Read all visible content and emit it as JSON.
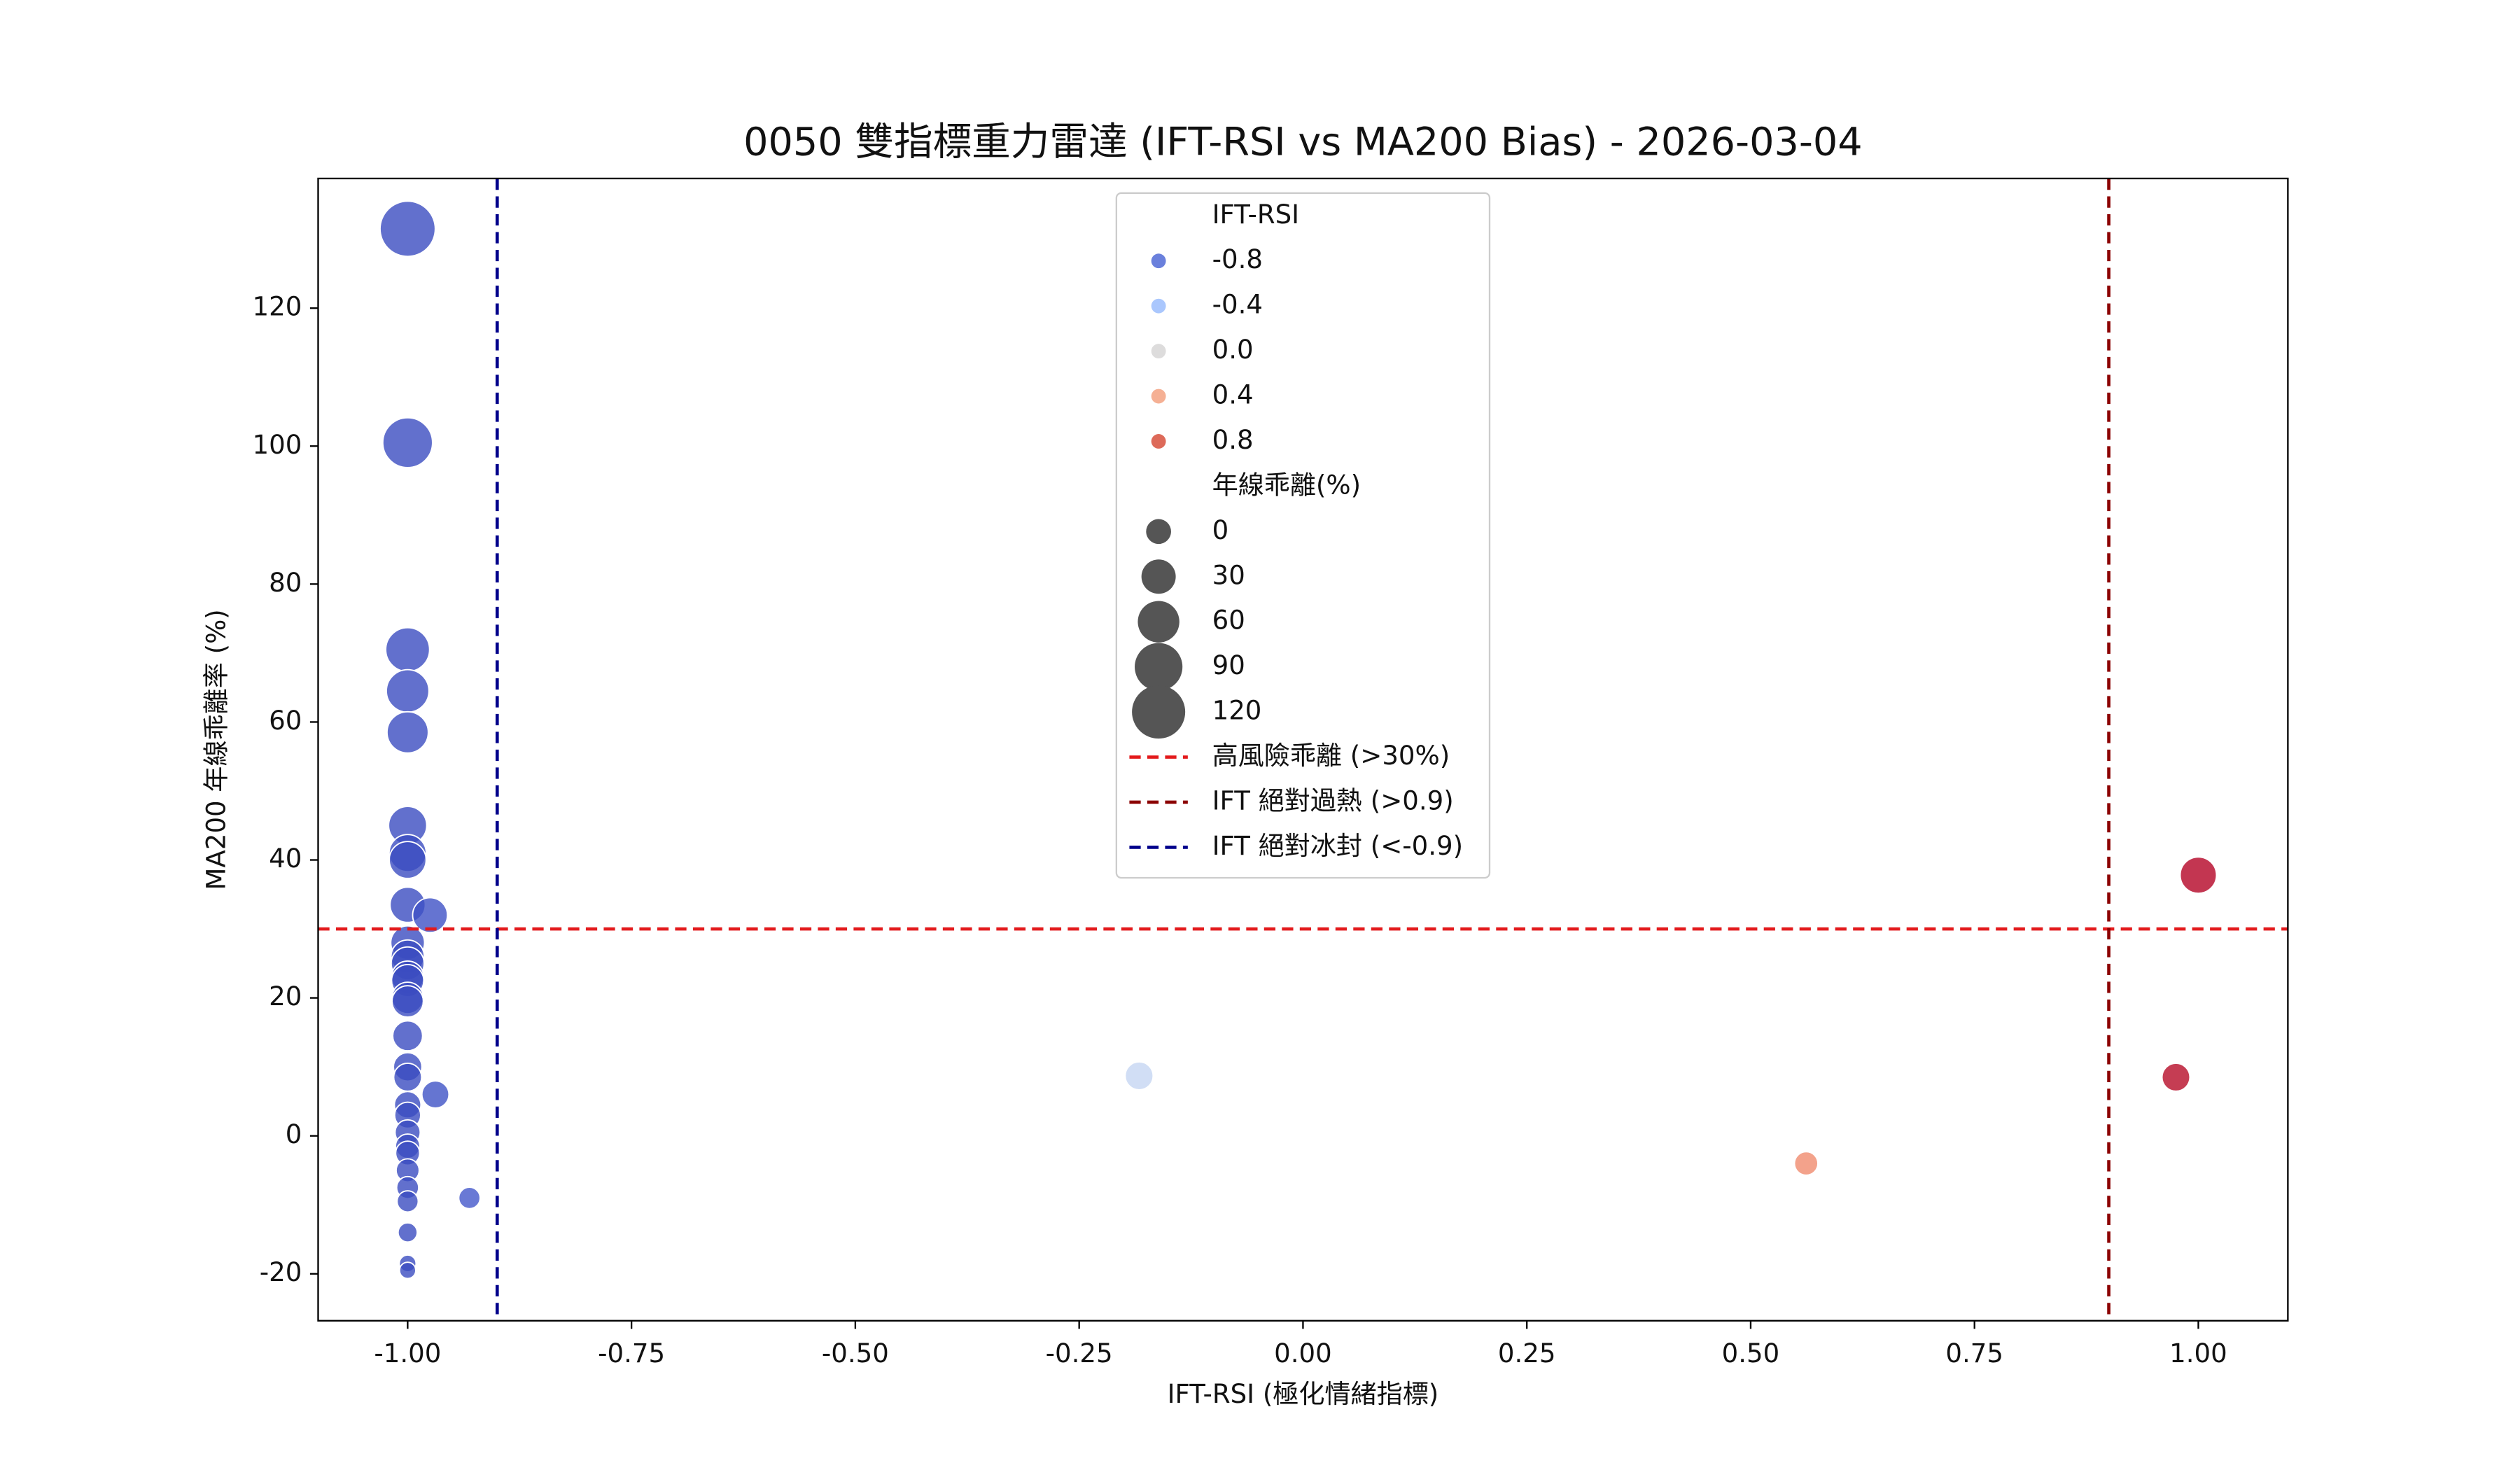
{
  "chart_data": {
    "type": "scatter",
    "title": "0050 雙指標重力雷達 (IFT-RSI vs MA200 Bias) - 2026-03-04",
    "x_label": "IFT-RSI (極化情緒指標)",
    "y_label": "MA200 年線乖離率 (%)",
    "x": [
      -1,
      -1,
      -1,
      -1,
      -1,
      -1,
      -1,
      -1,
      -1,
      -0.975,
      -1,
      -1,
      -1,
      -1,
      -1,
      -1,
      -1,
      -1,
      -1,
      -1,
      -0.969,
      -1,
      -1,
      -1,
      -1,
      -1,
      -1,
      -1,
      -1,
      -0.931,
      -1,
      -1,
      -1,
      -0.183,
      0.562,
      0.975,
      1.0
    ],
    "values": [
      131.5,
      100.5,
      70.5,
      64.5,
      58.5,
      45,
      41,
      40,
      33.5,
      32,
      28,
      26,
      25,
      23,
      22.5,
      20,
      19.5,
      14.5,
      10,
      8.5,
      6,
      4.5,
      3,
      0.5,
      -1.5,
      -2.5,
      -5,
      -7.5,
      -9.5,
      -9,
      -14,
      -18.5,
      -19.5,
      8.7,
      -4,
      8.5,
      37.8
    ],
    "colors": [
      "#3b4cc0",
      "#3b4cc0",
      "#3b4cc0",
      "#3b4cc0",
      "#3b4cc0",
      "#3b4cc0",
      "#3b4cc0",
      "#3b4cc0",
      "#3b4cc0",
      "#3e51c5",
      "#3b4cc0",
      "#3b4cc0",
      "#3b4cc0",
      "#3b4cc0",
      "#3b4cc0",
      "#3b4cc0",
      "#3b4cc0",
      "#3b4cc0",
      "#3b4cc0",
      "#3b4cc0",
      "#3f53c6",
      "#3b4cc0",
      "#3b4cc0",
      "#3b4cc0",
      "#3b4cc0",
      "#3b4cc0",
      "#3b4cc0",
      "#3b4cc0",
      "#3b4cc0",
      "#4358cb",
      "#3b4cc0",
      "#3b4cc0",
      "#3b4cc0",
      "#c5d6f2",
      "#f08b6e",
      "#b70d28",
      "#b40426"
    ],
    "xlim": [
      -1.1,
      1.1
    ],
    "ylim": [
      -26.8,
      138.8
    ],
    "xticks": [
      {
        "value": -1,
        "label": "-1.00"
      },
      {
        "value": -0.75,
        "label": "-0.75"
      },
      {
        "value": -0.5,
        "label": "-0.50"
      },
      {
        "value": -0.25,
        "label": "-0.25"
      },
      {
        "value": 0,
        "label": "0.00"
      },
      {
        "value": 0.25,
        "label": "0.25"
      },
      {
        "value": 0.5,
        "label": "0.50"
      },
      {
        "value": 0.75,
        "label": "0.75"
      },
      {
        "value": 1,
        "label": "1.00"
      }
    ],
    "yticks": [
      -20,
      0,
      20,
      40,
      60,
      80,
      100,
      120
    ],
    "legend": {
      "position": "upper center",
      "hue_title": "IFT-RSI",
      "hue_entries": [
        -0.8,
        -0.4,
        {
          "value": 0,
          "label": "0.0"
        },
        0.4,
        0.8
      ],
      "hue_colors": [
        "#6a80dc",
        "#aac7fd",
        "#dddcdc",
        "#f5b094",
        "#dd6a59"
      ],
      "size_title": "年線乖離(%)",
      "size_entries": [
        0,
        30,
        60,
        90,
        120
      ],
      "size_color": "#555555"
    },
    "reference_lines": [
      {
        "name": "高風險乖離 (>30%)",
        "axis": "y",
        "value": 30,
        "color": "#e31a1c"
      },
      {
        "name": "IFT 絕對過熱 (>0.9)",
        "axis": "x",
        "value": 0.9,
        "color": "#8b0000"
      },
      {
        "name": "IFT 絕對冰封 (<-0.9)",
        "axis": "x",
        "value": -0.9,
        "color": "#00008b"
      }
    ]
  }
}
